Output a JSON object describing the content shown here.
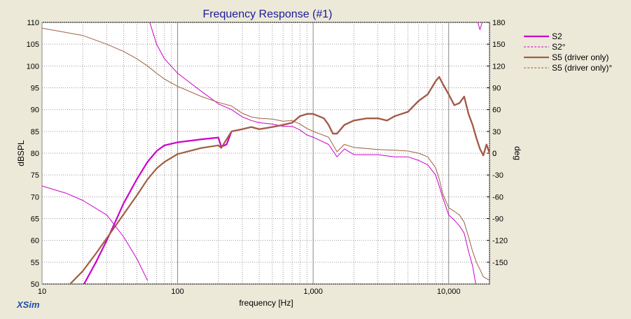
{
  "app_brand": "XSim",
  "chart_data": {
    "type": "line",
    "title": "Frequency Response (#1)",
    "xlabel": "frequency [Hz]",
    "ylabel": "dBSPL",
    "y2label": "deg",
    "xscale": "log",
    "xlim": [
      10,
      20000
    ],
    "ylim": [
      50,
      110
    ],
    "y2lim": [
      -180,
      180
    ],
    "x_ticks": [
      10,
      100,
      1000,
      10000
    ],
    "x_tick_labels": [
      "10",
      "100",
      "1,000",
      "10,000"
    ],
    "y_ticks": [
      50,
      55,
      60,
      65,
      70,
      75,
      80,
      85,
      90,
      95,
      100,
      105,
      110
    ],
    "y2_ticks": [
      -150,
      -120,
      -90,
      -60,
      -30,
      0,
      30,
      60,
      90,
      120,
      150,
      180
    ],
    "grid": true,
    "legend_position": "top-right",
    "series": [
      {
        "name": "S2",
        "axis": "left",
        "color": "#cc00cc",
        "style": "solid-thick",
        "points": [
          [
            20,
            49.5
          ],
          [
            25,
            55
          ],
          [
            30,
            60
          ],
          [
            35,
            64.5
          ],
          [
            40,
            68.5
          ],
          [
            50,
            74
          ],
          [
            60,
            78
          ],
          [
            70,
            80.5
          ],
          [
            80,
            81.8
          ],
          [
            100,
            82.5
          ],
          [
            150,
            83.2
          ],
          [
            200,
            83.6
          ],
          [
            210,
            81.5
          ],
          [
            230,
            82
          ],
          [
            250,
            85
          ],
          [
            300,
            85.5
          ],
          [
            350,
            86
          ],
          [
            400,
            85.5
          ],
          [
            500,
            86
          ],
          [
            600,
            86.5
          ],
          [
            700,
            87
          ],
          [
            800,
            88.5
          ],
          [
            900,
            89
          ],
          [
            1000,
            89
          ],
          [
            1200,
            88
          ],
          [
            1300,
            86.5
          ],
          [
            1400,
            84.5
          ],
          [
            1500,
            84.5
          ],
          [
            1700,
            86.5
          ],
          [
            2000,
            87.5
          ],
          [
            2500,
            88
          ],
          [
            3000,
            88
          ],
          [
            3500,
            87.5
          ],
          [
            4000,
            88.5
          ],
          [
            5000,
            89.5
          ],
          [
            6000,
            92
          ],
          [
            7000,
            93.5
          ],
          [
            8000,
            96.5
          ],
          [
            8500,
            97.5
          ],
          [
            9000,
            96
          ],
          [
            10000,
            93.5
          ],
          [
            11000,
            91
          ],
          [
            12000,
            91.5
          ],
          [
            13000,
            93
          ],
          [
            14000,
            89
          ],
          [
            15000,
            86.5
          ],
          [
            16000,
            83.5
          ],
          [
            17000,
            81
          ],
          [
            18000,
            79.5
          ],
          [
            19000,
            82
          ],
          [
            20000,
            80
          ]
        ]
      },
      {
        "name": "S2°",
        "axis": "right",
        "color": "#cc00cc",
        "style": "dashed",
        "points": [
          [
            60,
            190
          ],
          [
            70,
            150
          ],
          [
            80,
            130
          ],
          [
            100,
            110
          ],
          [
            150,
            85
          ],
          [
            200,
            68
          ],
          [
            250,
            60
          ],
          [
            300,
            50
          ],
          [
            350,
            45
          ],
          [
            400,
            42
          ],
          [
            500,
            40
          ],
          [
            600,
            37
          ],
          [
            700,
            37
          ],
          [
            800,
            32
          ],
          [
            900,
            25
          ],
          [
            1000,
            22
          ],
          [
            1300,
            12
          ],
          [
            1500,
            -5
          ],
          [
            1700,
            6
          ],
          [
            2000,
            -2
          ],
          [
            3000,
            -2
          ],
          [
            4000,
            -5
          ],
          [
            5000,
            -5
          ],
          [
            6000,
            -10
          ],
          [
            7000,
            -16
          ],
          [
            8000,
            -30
          ],
          [
            8500,
            -45
          ],
          [
            9000,
            -60
          ],
          [
            10000,
            -85
          ],
          [
            11000,
            -92
          ],
          [
            12000,
            -100
          ],
          [
            13000,
            -110
          ],
          [
            14000,
            -135
          ],
          [
            15000,
            -155
          ],
          [
            16000,
            -185
          ],
          [
            16100,
            185
          ],
          [
            17000,
            170
          ],
          [
            18000,
            185
          ]
        ]
      },
      {
        "name": "S5 (driver only)",
        "axis": "left",
        "color": "#a06040",
        "style": "solid-thick",
        "points": [
          [
            15,
            49
          ],
          [
            20,
            53
          ],
          [
            25,
            57
          ],
          [
            30,
            60.5
          ],
          [
            40,
            66
          ],
          [
            50,
            70.3
          ],
          [
            60,
            74
          ],
          [
            70,
            76.5
          ],
          [
            80,
            78
          ],
          [
            100,
            79.8
          ],
          [
            150,
            81.2
          ],
          [
            200,
            81.8
          ],
          [
            210,
            81.2
          ],
          [
            250,
            85
          ],
          [
            300,
            85.5
          ],
          [
            350,
            86
          ],
          [
            400,
            85.5
          ],
          [
            500,
            86
          ],
          [
            600,
            86.5
          ],
          [
            700,
            87
          ],
          [
            800,
            88.5
          ],
          [
            900,
            89
          ],
          [
            1000,
            89
          ],
          [
            1200,
            88
          ],
          [
            1300,
            86.5
          ],
          [
            1400,
            84.5
          ],
          [
            1500,
            84.5
          ],
          [
            1700,
            86.5
          ],
          [
            2000,
            87.5
          ],
          [
            2500,
            88
          ],
          [
            3000,
            88
          ],
          [
            3500,
            87.5
          ],
          [
            4000,
            88.5
          ],
          [
            5000,
            89.5
          ],
          [
            6000,
            92
          ],
          [
            7000,
            93.5
          ],
          [
            8000,
            96.5
          ],
          [
            8500,
            97.5
          ],
          [
            9000,
            96
          ],
          [
            10000,
            93.5
          ],
          [
            11000,
            91
          ],
          [
            12000,
            91.5
          ],
          [
            13000,
            93
          ],
          [
            14000,
            89
          ],
          [
            15000,
            86.5
          ],
          [
            16000,
            83.5
          ],
          [
            17000,
            81
          ],
          [
            18000,
            79.5
          ],
          [
            19000,
            82
          ],
          [
            20000,
            80
          ]
        ]
      },
      {
        "name": "S5 (driver only)°",
        "axis": "right",
        "color": "#a06040",
        "style": "dashed",
        "points": [
          [
            10,
            172
          ],
          [
            20,
            162
          ],
          [
            30,
            150
          ],
          [
            40,
            140
          ],
          [
            50,
            130
          ],
          [
            60,
            120
          ],
          [
            70,
            110
          ],
          [
            80,
            102
          ],
          [
            100,
            92
          ],
          [
            150,
            78
          ],
          [
            200,
            70
          ],
          [
            250,
            65
          ],
          [
            300,
            55
          ],
          [
            350,
            50
          ],
          [
            400,
            48
          ],
          [
            500,
            47
          ],
          [
            600,
            44
          ],
          [
            700,
            45
          ],
          [
            800,
            40
          ],
          [
            900,
            34
          ],
          [
            1000,
            30
          ],
          [
            1300,
            22
          ],
          [
            1500,
            2
          ],
          [
            1700,
            12
          ],
          [
            2000,
            8
          ],
          [
            3000,
            5
          ],
          [
            4000,
            4
          ],
          [
            5000,
            3
          ],
          [
            6000,
            0
          ],
          [
            7000,
            -5
          ],
          [
            8000,
            -20
          ],
          [
            8500,
            -35
          ],
          [
            9000,
            -55
          ],
          [
            10000,
            -75
          ],
          [
            11000,
            -80
          ],
          [
            12000,
            -85
          ],
          [
            13000,
            -95
          ],
          [
            14000,
            -115
          ],
          [
            15000,
            -135
          ],
          [
            16000,
            -150
          ],
          [
            17000,
            -160
          ],
          [
            18000,
            -170
          ],
          [
            20000,
            -175
          ]
        ]
      }
    ],
    "phase_left_curve": {
      "name": "",
      "axis": "right",
      "color": "#cc00cc",
      "points": [
        [
          10,
          -45
        ],
        [
          15,
          -55
        ],
        [
          20,
          -65
        ],
        [
          30,
          -85
        ],
        [
          40,
          -115
        ],
        [
          50,
          -145
        ],
        [
          60,
          -175
        ]
      ]
    }
  }
}
